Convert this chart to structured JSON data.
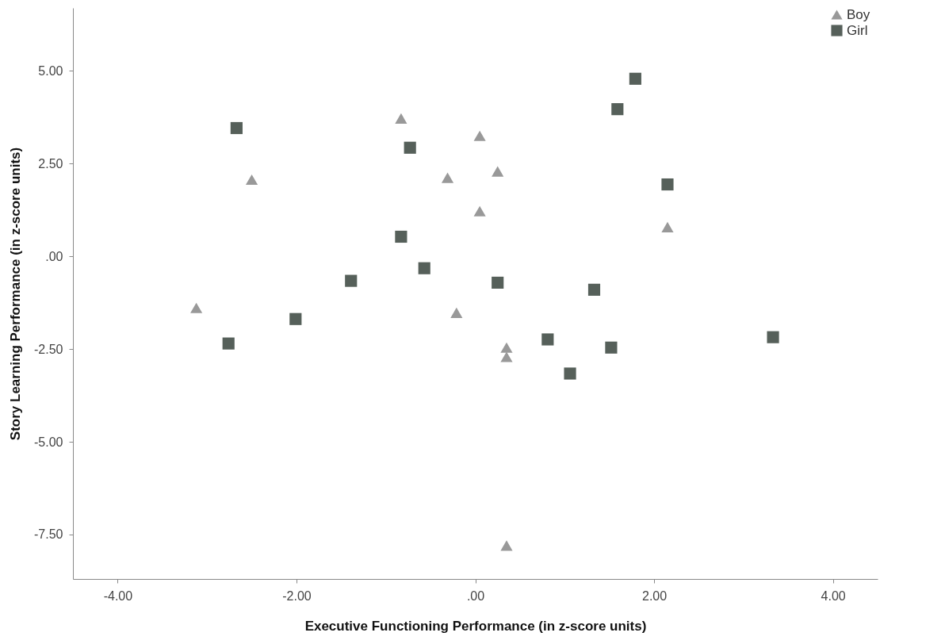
{
  "chart_data": {
    "type": "scatter",
    "xlabel": "Executive Functioning Performance (in z-score units)",
    "ylabel": "Story Learning Performance (in z-score units)",
    "xlim": [
      -4.5,
      4.5
    ],
    "ylim": [
      -8.7,
      6.7
    ],
    "xticks": [
      {
        "value": -4,
        "label": "-4.00"
      },
      {
        "value": -2,
        "label": "-2.00"
      },
      {
        "value": 0,
        "label": ".00"
      },
      {
        "value": 2,
        "label": "2.00"
      },
      {
        "value": 4,
        "label": "4.00"
      }
    ],
    "yticks": [
      {
        "value": -7.5,
        "label": "-7.50"
      },
      {
        "value": -5,
        "label": "-5.00"
      },
      {
        "value": -2.5,
        "label": "-2.50"
      },
      {
        "value": 0,
        "label": ".00"
      },
      {
        "value": 2.5,
        "label": "2.50"
      },
      {
        "value": 5,
        "label": "5.00"
      }
    ],
    "grid": false,
    "legend": "top right",
    "series": [
      {
        "name": "Boy",
        "color": "#999999",
        "marker": "triangle",
        "x": [
          -3.12,
          -2.5,
          -0.83,
          -0.31,
          0.05,
          0.25,
          0.05,
          -0.21,
          0.35,
          0.35,
          2.15,
          0.35
        ],
        "values": [
          -1.39,
          2.07,
          3.72,
          2.12,
          3.25,
          2.29,
          1.22,
          -1.52,
          -2.46,
          -2.71,
          0.79,
          -7.8
        ]
      },
      {
        "name": "Girl",
        "color": "#56605a",
        "marker": "square",
        "x": [
          -2.67,
          -2.76,
          -2.01,
          -1.39,
          -0.83,
          -0.73,
          -0.57,
          0.25,
          0.81,
          1.06,
          1.33,
          1.52,
          1.59,
          1.79,
          2.15,
          3.33
        ],
        "values": [
          3.46,
          -2.35,
          -1.69,
          -0.66,
          0.53,
          2.93,
          -0.32,
          -0.71,
          -2.24,
          -3.16,
          -0.9,
          -2.46,
          3.97,
          4.79,
          1.94,
          -2.18
        ]
      }
    ]
  }
}
